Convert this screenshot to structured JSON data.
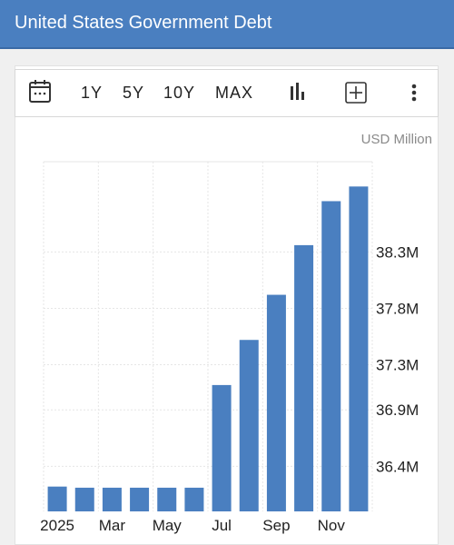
{
  "header": {
    "title": "United States Government Debt"
  },
  "toolbar": {
    "calendar_icon": "calendar-icon",
    "ranges": [
      "1Y",
      "5Y",
      "10Y",
      "MAX"
    ],
    "chart_type_icon": "bar-chart-icon",
    "add_icon": "plus-box-icon",
    "more_icon": "vertical-dots-icon"
  },
  "chart": {
    "unit": "USD Million"
  },
  "colors": {
    "header": "#4a7fc0",
    "bar": "#4a7fc0"
  },
  "chart_data": {
    "type": "bar",
    "categories": [
      "Jan 2025",
      "Feb 2025",
      "Mar 2025",
      "Apr 2025",
      "May 2025",
      "Jun 2025",
      "Jul 2025",
      "Aug 2025",
      "Sep 2025",
      "Oct 2025",
      "Nov 2025",
      "Dec 2025"
    ],
    "values": [
      36220000,
      36210000,
      36210000,
      36210000,
      36210000,
      36210000,
      37120000,
      37520000,
      37920000,
      38360000,
      38750000,
      38880000
    ],
    "y_ticks": [
      36400000,
      36900000,
      37300000,
      37800000,
      38300000
    ],
    "y_tick_labels": [
      "36.4M",
      "36.9M",
      "37.3M",
      "37.8M",
      "38.3M"
    ],
    "x_tick_labels": [
      "2025",
      "Mar",
      "May",
      "Jul",
      "Sep",
      "Nov"
    ],
    "x_tick_categories": [
      0,
      2,
      4,
      6,
      8,
      10
    ],
    "ylim": [
      36000000,
      39100000
    ],
    "ylabel": "USD Million",
    "grid": true,
    "y_axis_side": "right"
  }
}
